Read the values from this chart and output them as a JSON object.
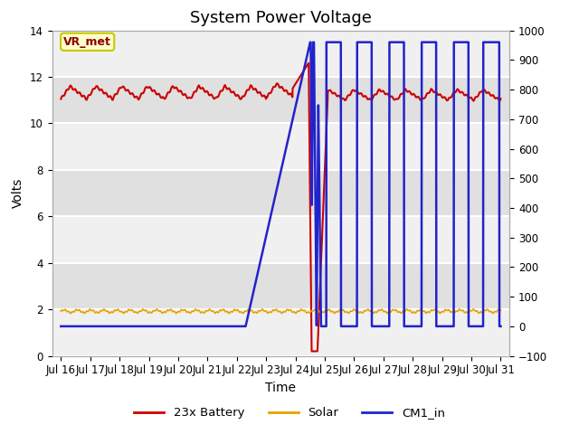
{
  "title": "System Power Voltage",
  "xlabel": "Time",
  "ylabel_left": "Volts",
  "ylim_left": [
    0,
    14
  ],
  "ylim_right": [
    -100,
    1000
  ],
  "yticks_left": [
    0,
    2,
    4,
    6,
    8,
    10,
    12,
    14
  ],
  "yticks_right": [
    -100,
    0,
    100,
    200,
    300,
    400,
    500,
    600,
    700,
    800,
    900,
    1000
  ],
  "xtick_labels": [
    "Jul 16",
    "Jul 17",
    "Jul 18",
    "Jul 19",
    "Jul 20",
    "Jul 21",
    "Jul 22",
    "Jul 23",
    "Jul 24",
    "Jul 25",
    "Jul 26",
    "Jul 27",
    "Jul 28",
    "Jul 29",
    "Jul 30",
    "Jul 31"
  ],
  "background_color": "#ffffff",
  "plot_bg_light": "#f0f0f0",
  "plot_bg_dark": "#e0e0e0",
  "grid_color": "#ffffff",
  "annotation_text": "VR_met",
  "annotation_color": "#8b0000",
  "annotation_bg": "#ffffcc",
  "annotation_edge": "#c8c800",
  "legend_entries": [
    "23x Battery",
    "Solar",
    "CM1_in"
  ],
  "legend_colors": [
    "#cc0000",
    "#e8a000",
    "#2222cc"
  ],
  "title_fontsize": 13,
  "axis_label_fontsize": 10,
  "tick_fontsize": 8.5,
  "linewidth_battery": 1.5,
  "linewidth_solar": 1.2,
  "linewidth_cm1": 1.8
}
